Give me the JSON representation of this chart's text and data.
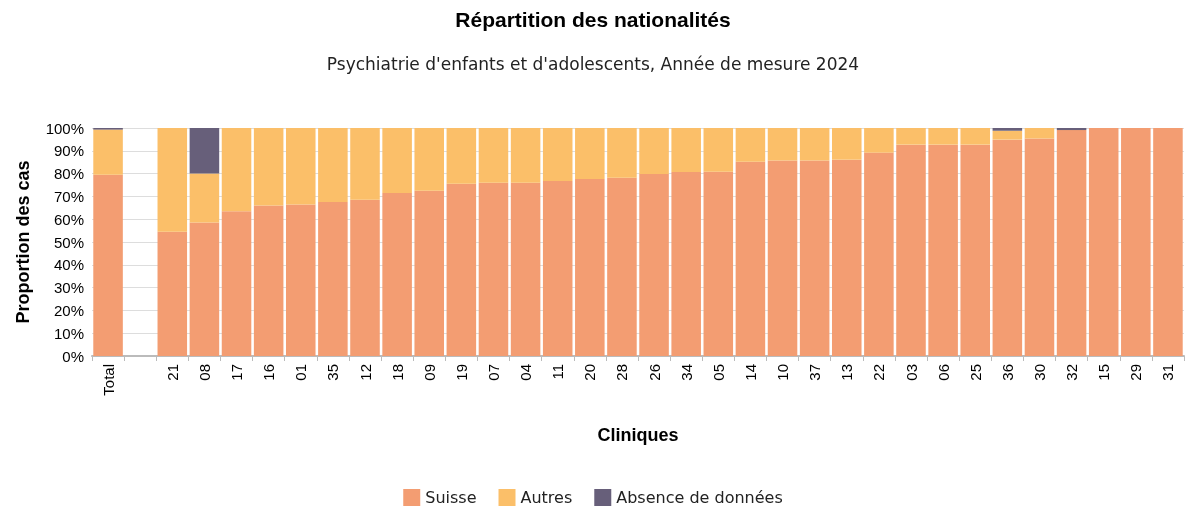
{
  "chart_data": {
    "type": "bar",
    "stacked": true,
    "title": "Répartition des nationalités",
    "subtitle": "Psychiatrie d'enfants et d'adolescents, Année de mesure 2024",
    "xlabel": "Cliniques",
    "ylabel": "Proportion des cas",
    "categories": [
      "Total",
      null,
      "21",
      "08",
      "17",
      "16",
      "01",
      "35",
      "12",
      "18",
      "09",
      "19",
      "07",
      "04",
      "11",
      "20",
      "28",
      "26",
      "34",
      "05",
      "14",
      "10",
      "37",
      "13",
      "22",
      "03",
      "06",
      "25",
      "36",
      "30",
      "32",
      "15",
      "29",
      "31"
    ],
    "series": [
      {
        "name": "Suisse",
        "color": "#f39d72",
        "values": [
          79.5,
          null,
          54.5,
          58.5,
          63.5,
          66,
          66.5,
          67.5,
          68.5,
          71.5,
          72.5,
          75.6,
          76,
          76,
          76.8,
          77.6,
          78.2,
          79.8,
          80.7,
          80.8,
          85.2,
          85.7,
          85.7,
          86.1,
          89.2,
          92.7,
          92.7,
          92.7,
          94.9,
          95.4,
          99.1,
          100,
          100,
          100
        ]
      },
      {
        "name": "Autres",
        "color": "#fbbf69",
        "values": [
          19.8,
          null,
          45.5,
          21.5,
          36.5,
          34,
          33.5,
          32.5,
          31.5,
          28.5,
          27.5,
          24.4,
          24,
          24,
          23.2,
          22.4,
          21.8,
          20.2,
          19.3,
          19.2,
          14.8,
          14.3,
          14.3,
          13.9,
          10.8,
          7.3,
          7.3,
          7.3,
          3.9,
          4.6,
          0,
          0,
          0,
          0
        ]
      },
      {
        "name": "Absence de données",
        "color": "#675f7a",
        "values": [
          0.7,
          null,
          0,
          20,
          0,
          0,
          0,
          0,
          0,
          0,
          0,
          0,
          0,
          0,
          0,
          0,
          0,
          0,
          0,
          0,
          0,
          0,
          0,
          0,
          0,
          0,
          0,
          0,
          1.2,
          0,
          0.9,
          0,
          0,
          0
        ]
      }
    ],
    "ylim": [
      0,
      100
    ],
    "yticks": [
      {
        "value": 0,
        "label": "0%"
      },
      {
        "value": 10,
        "label": "10%"
      },
      {
        "value": 20,
        "label": "20%"
      },
      {
        "value": 30,
        "label": "30%"
      },
      {
        "value": 40,
        "label": "40%"
      },
      {
        "value": 50,
        "label": "50%"
      },
      {
        "value": 60,
        "label": "60%"
      },
      {
        "value": 70,
        "label": "70%"
      },
      {
        "value": 80,
        "label": "80%"
      },
      {
        "value": 90,
        "label": "90%"
      },
      {
        "value": 100,
        "label": "100%"
      }
    ],
    "grid": "y",
    "legend": "bottom"
  }
}
